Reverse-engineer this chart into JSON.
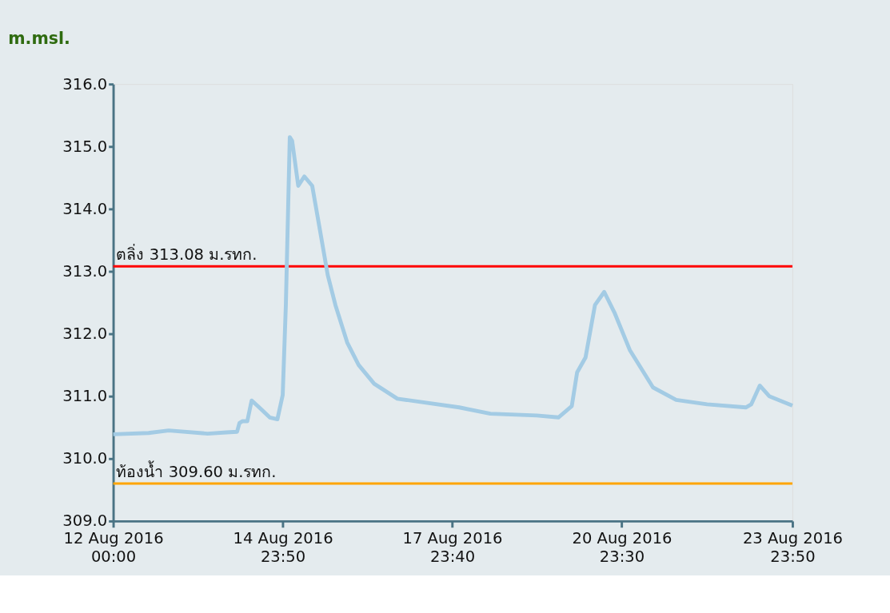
{
  "chart_data": {
    "type": "line",
    "ylabel": "m.msl.",
    "x": [
      "2016-08-12T00:00",
      "2016-08-12T15:00",
      "2016-08-12T23:30",
      "2016-08-13T16:00",
      "2016-08-14T00:00",
      "2016-08-14T04:30",
      "2016-08-14T05:30",
      "2016-08-14T06:50",
      "2016-08-14T08:50",
      "2016-08-14T10:40",
      "2016-08-14T13:20",
      "2016-08-14T18:20",
      "2016-08-14T21:35",
      "2016-08-14T23:50",
      "2016-08-15T01:10",
      "2016-08-15T02:50",
      "2016-08-15T03:50",
      "2016-08-15T06:25",
      "2016-08-15T09:00",
      "2016-08-15T12:20",
      "2016-08-15T15:40",
      "2016-08-15T18:55",
      "2016-08-15T22:10",
      "2016-08-16T03:10",
      "2016-08-16T08:00",
      "2016-08-16T14:35",
      "2016-08-17T00:25",
      "2016-08-18T02:40",
      "2016-08-18T15:50",
      "2016-08-19T11:30",
      "2016-08-19T20:40",
      "2016-08-20T02:20",
      "2016-08-20T04:35",
      "2016-08-20T08:10",
      "2016-08-20T12:10",
      "2016-08-20T16:05",
      "2016-08-20T20:25",
      "2016-08-21T02:55",
      "2016-08-21T12:45",
      "2016-08-21T22:35",
      "2016-08-22T11:40",
      "2016-08-23T04:05",
      "2016-08-23T06:25",
      "2016-08-23T10:00",
      "2016-08-23T14:00",
      "2016-08-23T23:50"
    ],
    "series": [
      {
        "color": "#a3cbe4",
        "values": [
          310.39,
          310.41,
          310.45,
          310.4,
          310.42,
          310.43,
          310.57,
          310.6,
          310.6,
          310.93,
          310.84,
          310.66,
          310.63,
          311.02,
          312.46,
          315.15,
          315.09,
          314.37,
          314.52,
          314.37,
          313.65,
          312.94,
          312.46,
          311.86,
          311.5,
          311.2,
          310.96,
          310.82,
          310.72,
          310.69,
          310.66,
          310.84,
          311.38,
          311.62,
          312.46,
          312.67,
          312.34,
          311.74,
          311.14,
          310.94,
          310.87,
          310.82,
          310.87,
          311.17,
          311.0,
          310.85
        ]
      }
    ],
    "xlim": [
      "2016-08-12T00:00",
      "2016-08-23T23:50"
    ],
    "xticks": [
      {
        "value": "2016-08-12T00:00",
        "label": "12 Aug 2016\n00:00"
      },
      {
        "value": "2016-08-14T23:50",
        "label": "14 Aug 2016\n23:50"
      },
      {
        "value": "2016-08-17T23:40",
        "label": "17 Aug 2016\n23:40"
      },
      {
        "value": "2016-08-20T23:30",
        "label": "20 Aug 2016\n23:30"
      },
      {
        "value": "2016-08-23T23:50",
        "label": "23 Aug 2016\n23:50"
      }
    ],
    "ylim": [
      309,
      316
    ],
    "yticks": [
      {
        "value": 309,
        "label": "309.0"
      },
      {
        "value": 310,
        "label": "310.0"
      },
      {
        "value": 311,
        "label": "311.0"
      },
      {
        "value": 312,
        "label": "312.0"
      },
      {
        "value": 313,
        "label": "313.0"
      },
      {
        "value": 314,
        "label": "314.0"
      },
      {
        "value": 315,
        "label": "315.0"
      },
      {
        "value": 316,
        "label": "316.0"
      }
    ],
    "ref_lines": [
      {
        "axis": "y",
        "value": 313.08,
        "label": "ตลิ่ง 313.08 ม.รทก.",
        "color": "#ff0000"
      },
      {
        "axis": "y",
        "value": 309.6,
        "label": "ท้องน้ำ 309.60 ม.รทก.",
        "color": "#ffa500"
      }
    ],
    "grid": false,
    "marker": "none",
    "line_style": "solid"
  }
}
